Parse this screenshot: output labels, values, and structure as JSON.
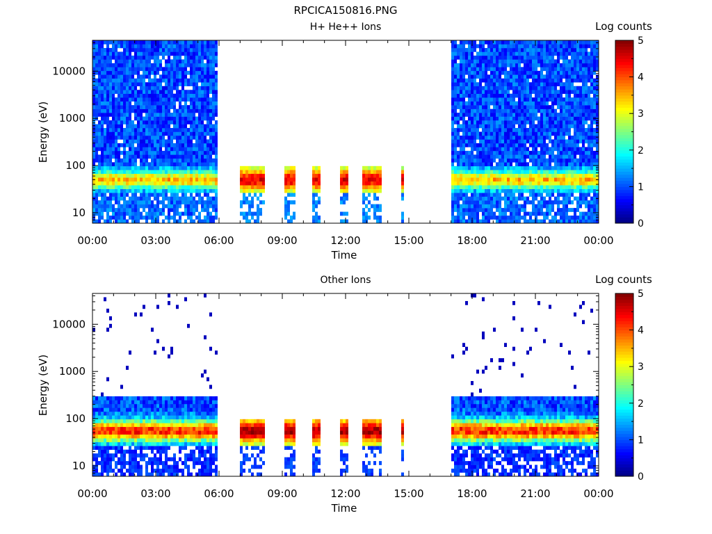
{
  "figure_title": "RPCICA150816.PNG",
  "chart_data": [
    {
      "type": "heatmap",
      "title": "H+ He++ Ions",
      "xlabel": "Time",
      "ylabel": "Energy (eV)",
      "y_scale": "log",
      "ylim": [
        6,
        45000
      ],
      "x_ticks": [
        "00:00",
        "03:00",
        "06:00",
        "09:00",
        "12:00",
        "15:00",
        "18:00",
        "21:00",
        "00:00"
      ],
      "y_ticks": [
        "10",
        "100",
        "1000",
        "10000"
      ],
      "y_tick_values": [
        10,
        100,
        1000,
        10000
      ],
      "colorbar": {
        "label": "Log counts",
        "ticks": [
          "0",
          "1",
          "2",
          "3",
          "4",
          "5"
        ],
        "range": [
          0,
          5
        ]
      },
      "data_intervals_hours": [
        [
          0.0,
          6.0
        ],
        [
          7.05,
          8.2
        ],
        [
          9.15,
          9.6
        ],
        [
          10.45,
          10.8
        ],
        [
          11.75,
          12.15
        ],
        [
          12.85,
          13.75
        ],
        [
          14.6,
          14.8
        ],
        [
          17.0,
          24.0
        ]
      ],
      "band_peak_energy_eV": 50,
      "band_peak_log_counts": 3.5
    },
    {
      "type": "heatmap",
      "title": "Other Ions",
      "xlabel": "Time",
      "ylabel": "Energy (eV)",
      "y_scale": "log",
      "ylim": [
        6,
        45000
      ],
      "x_ticks": [
        "00:00",
        "03:00",
        "06:00",
        "09:00",
        "12:00",
        "15:00",
        "18:00",
        "21:00",
        "00:00"
      ],
      "y_ticks": [
        "10",
        "100",
        "1000",
        "10000"
      ],
      "y_tick_values": [
        10,
        100,
        1000,
        10000
      ],
      "colorbar": {
        "label": "Log counts",
        "ticks": [
          "0",
          "1",
          "2",
          "3",
          "4",
          "5"
        ],
        "range": [
          0,
          5
        ]
      },
      "data_intervals_hours": [
        [
          0.0,
          6.0
        ],
        [
          7.05,
          8.2
        ],
        [
          9.15,
          9.6
        ],
        [
          10.45,
          10.8
        ],
        [
          11.75,
          12.15
        ],
        [
          12.85,
          13.75
        ],
        [
          14.6,
          14.8
        ],
        [
          17.0,
          24.0
        ]
      ],
      "band_peak_energy_eV": 55,
      "band_peak_log_counts": 4.2
    }
  ]
}
